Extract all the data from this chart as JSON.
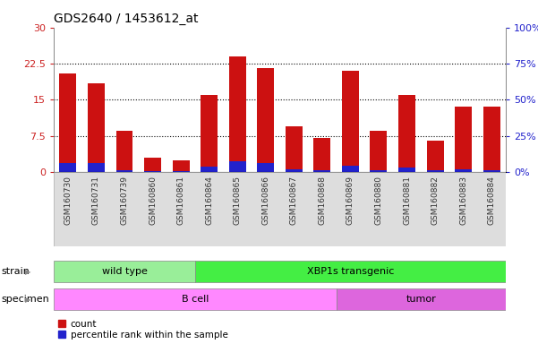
{
  "title": "GDS2640 / 1453612_at",
  "samples": [
    "GSM160730",
    "GSM160731",
    "GSM160739",
    "GSM160860",
    "GSM160861",
    "GSM160864",
    "GSM160865",
    "GSM160866",
    "GSM160867",
    "GSM160868",
    "GSM160869",
    "GSM160880",
    "GSM160881",
    "GSM160882",
    "GSM160883",
    "GSM160884"
  ],
  "count_values": [
    20.5,
    18.5,
    8.5,
    3.0,
    2.5,
    16.0,
    24.0,
    21.5,
    9.5,
    7.0,
    21.0,
    8.5,
    16.0,
    6.5,
    13.5,
    13.5
  ],
  "percentile_values": [
    6.5,
    6.0,
    1.5,
    0.5,
    0.5,
    3.5,
    7.5,
    6.5,
    2.0,
    1.0,
    4.5,
    1.5,
    3.0,
    1.0,
    2.0,
    1.5
  ],
  "ylim_left": [
    0,
    30
  ],
  "ylim_right": [
    0,
    100
  ],
  "yticks_left": [
    0,
    7.5,
    15,
    22.5,
    30
  ],
  "yticks_right": [
    0,
    25,
    50,
    75,
    100
  ],
  "ytick_labels_left": [
    "0",
    "7.5",
    "15",
    "22.5",
    "30"
  ],
  "ytick_labels_right": [
    "0%",
    "25%",
    "50%",
    "75%",
    "100%"
  ],
  "bar_color_count": "#cc1111",
  "bar_color_percentile": "#2222cc",
  "bar_width": 0.6,
  "background_color": "#ffffff",
  "strain_groups": [
    {
      "label": "wild type",
      "start": 0,
      "end": 4,
      "color": "#99ee99"
    },
    {
      "label": "XBP1s transgenic",
      "start": 5,
      "end": 15,
      "color": "#44ee44"
    }
  ],
  "specimen_groups": [
    {
      "label": "B cell",
      "start": 0,
      "end": 9,
      "color": "#ff88ff"
    },
    {
      "label": "tumor",
      "start": 10,
      "end": 15,
      "color": "#dd66dd"
    }
  ],
  "strain_label": "strain",
  "specimen_label": "specimen",
  "legend_count_label": "count",
  "legend_percentile_label": "percentile rank within the sample",
  "title_fontsize": 10,
  "axis_label_color_left": "#cc2222",
  "axis_label_color_right": "#2222cc"
}
